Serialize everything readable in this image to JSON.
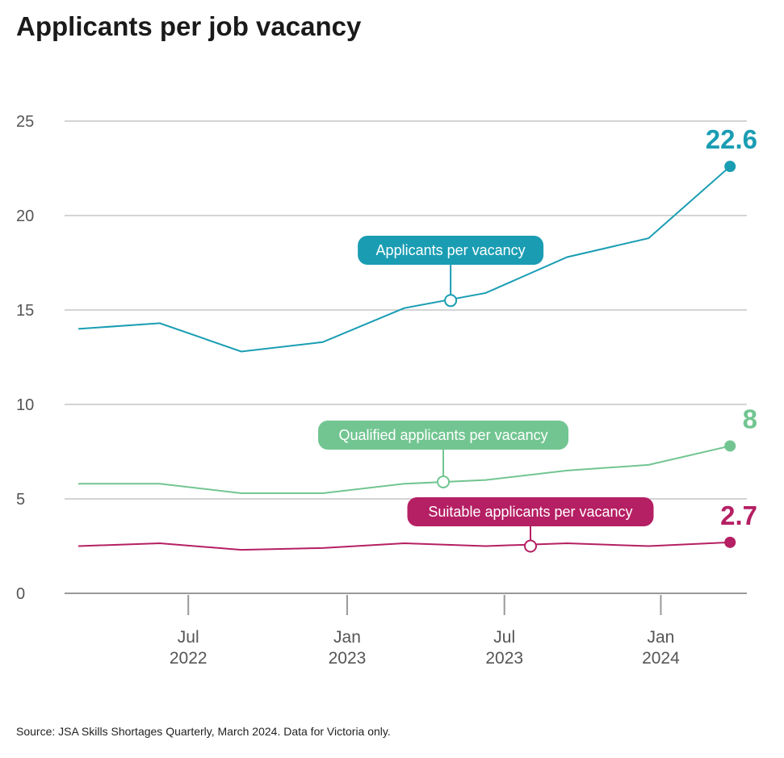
{
  "chart_data": {
    "type": "line",
    "title": "Applicants per job vacancy",
    "xlabel": "",
    "ylabel": "",
    "ylim": [
      0,
      25
    ],
    "yticks": [
      0,
      5,
      10,
      15,
      20,
      25
    ],
    "grid": true,
    "x": [
      "Mar 2022",
      "Jun 2022",
      "Sep 2022",
      "Dec 2022",
      "Mar 2023",
      "Jun 2023",
      "Sep 2023",
      "Dec 2023",
      "Mar 2024"
    ],
    "xticks": [
      {
        "month": "Jul",
        "year": "2022",
        "pos": 1.35
      },
      {
        "month": "Jan",
        "year": "2023",
        "pos": 3.3
      },
      {
        "month": "Jul",
        "year": "2023",
        "pos": 5.23
      },
      {
        "month": "Jan",
        "year": "2024",
        "pos": 7.15
      }
    ],
    "series": [
      {
        "name": "Applicants per vacancy",
        "color": "#1a9db3",
        "values": [
          14.0,
          14.3,
          12.8,
          13.3,
          15.1,
          15.9,
          17.8,
          18.8,
          22.6
        ],
        "end_label": "22.6",
        "callout_pos": 4.57,
        "callout_value": 15.5
      },
      {
        "name": "Qualified applicants per vacancy",
        "color": "#72c591",
        "values": [
          5.8,
          5.8,
          5.3,
          5.3,
          5.8,
          6.0,
          6.5,
          6.8,
          7.8
        ],
        "end_label": "8",
        "callout_pos": 4.48,
        "callout_value": 5.9
      },
      {
        "name": "Suitable applicants per vacancy",
        "color": "#b51f63",
        "values": [
          2.5,
          2.65,
          2.3,
          2.4,
          2.65,
          2.5,
          2.65,
          2.5,
          2.7
        ],
        "end_label": "2.7",
        "callout_pos": 5.55,
        "callout_value": 2.5
      }
    ]
  },
  "source": "Source: JSA Skills Shortages Quarterly, March 2024. Data for Victoria only."
}
